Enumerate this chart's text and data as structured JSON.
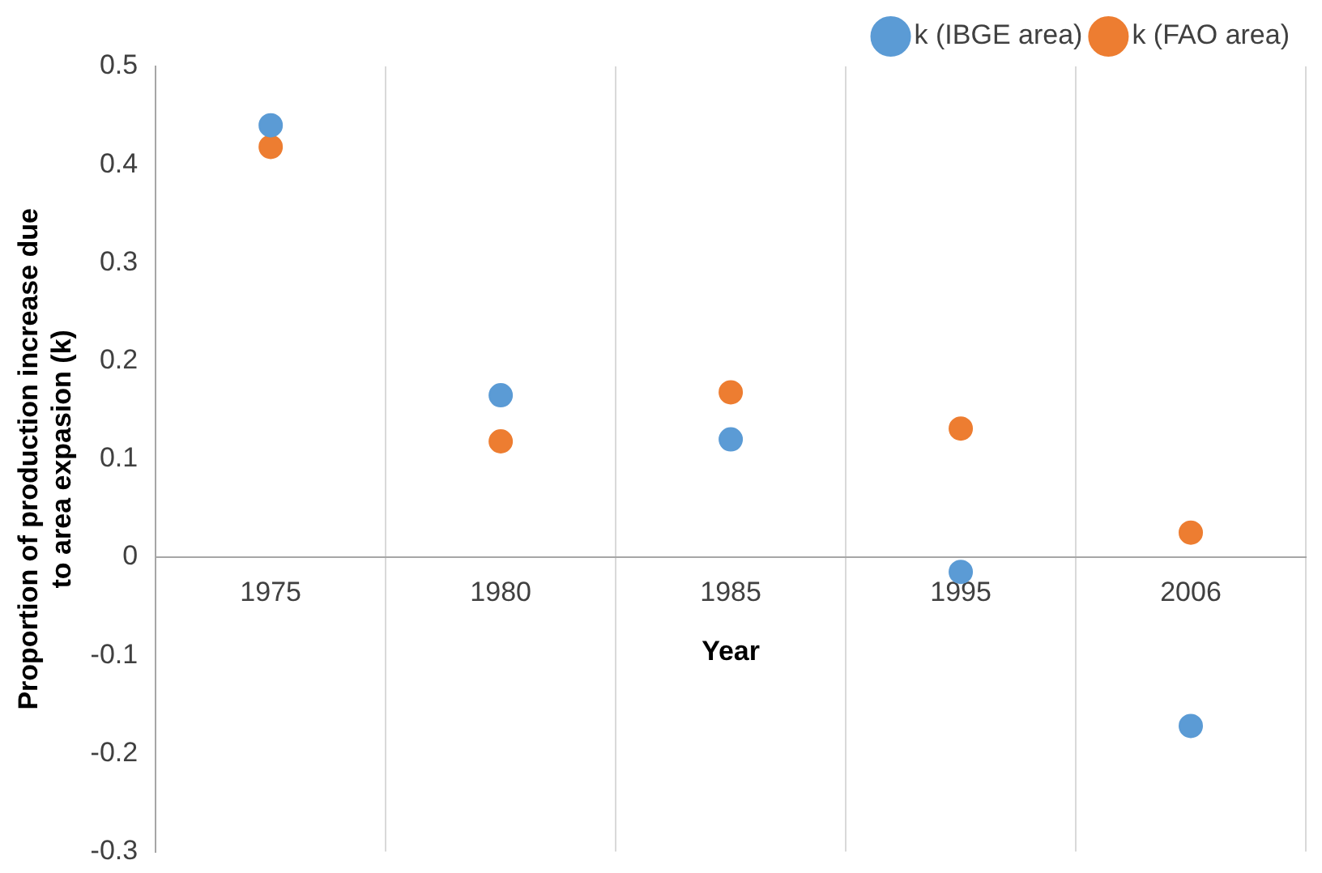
{
  "chart_data": {
    "type": "scatter",
    "xlabel": "Year",
    "ylabel": "Proportion of production increase due to area expasion (k)",
    "categories": [
      "1975",
      "1980",
      "1985",
      "1995",
      "2006"
    ],
    "series": [
      {
        "name": "k (IBGE area)",
        "color": "#5b9bd5",
        "values": [
          0.44,
          0.165,
          0.12,
          -0.015,
          -0.172
        ]
      },
      {
        "name": "k (FAO area)",
        "color": "#ed7d31",
        "values": [
          0.418,
          0.118,
          0.168,
          0.131,
          0.025
        ]
      }
    ],
    "ylim": [
      -0.3,
      0.5
    ],
    "yticks": [
      -0.3,
      -0.2,
      -0.1,
      0,
      0.1,
      0.2,
      0.3,
      0.4,
      0.5
    ],
    "grid": "x",
    "legend": "top right",
    "marker": "circle"
  }
}
